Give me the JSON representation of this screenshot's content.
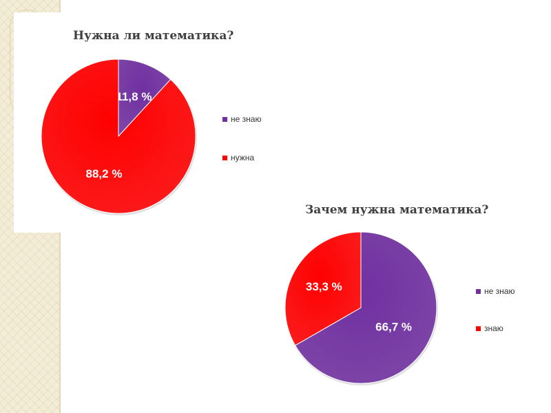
{
  "chart_data": [
    {
      "type": "pie",
      "title": "Нужна ли математика?",
      "slices": [
        {
          "label": "не знаю",
          "value": 11.8,
          "value_label": "11,8 %",
          "color": "#7030a0"
        },
        {
          "label": "нужна",
          "value": 88.2,
          "value_label": "88,2 %",
          "color": "#ff0000"
        }
      ],
      "legend_position": "right"
    },
    {
      "type": "pie",
      "title": "Зачем нужна математика?",
      "slices": [
        {
          "label": "не знаю",
          "value": 66.7,
          "value_label": "66,7 %",
          "color": "#7030a0"
        },
        {
          "label": "знаю",
          "value": 33.3,
          "value_label": "33,3 %",
          "color": "#ff0000"
        }
      ],
      "legend_position": "right"
    }
  ]
}
